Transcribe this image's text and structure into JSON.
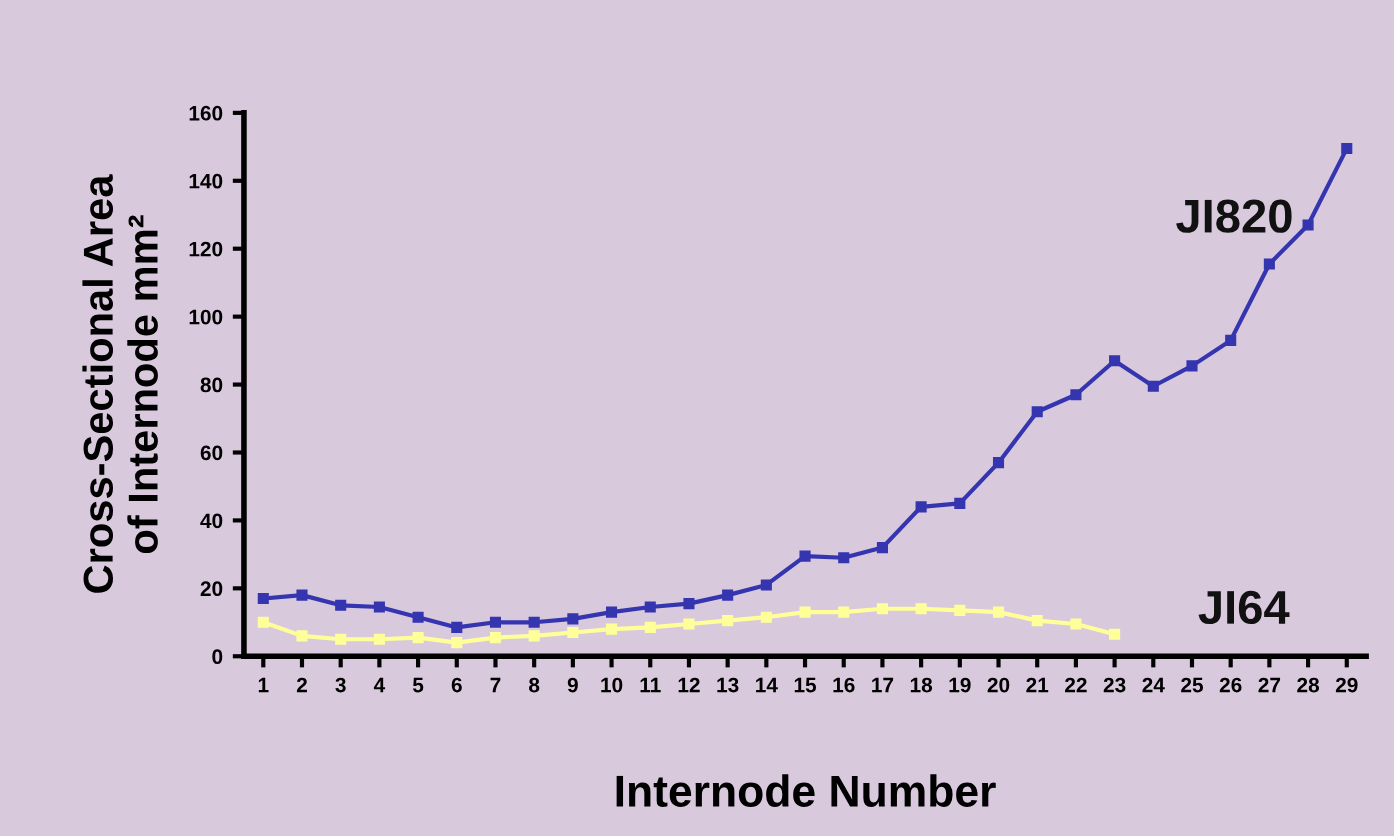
{
  "chart_data": {
    "type": "line",
    "xlabel": "Internode Number",
    "ylabel": "Cross-Sectional Area\nof Internode mm²",
    "categories": [
      "1",
      "2",
      "3",
      "4",
      "5",
      "6",
      "7",
      "8",
      "9",
      "10",
      "11",
      "12",
      "13",
      "14",
      "15",
      "16",
      "17",
      "18",
      "19",
      "20",
      "21",
      "22",
      "23",
      "24",
      "25",
      "26",
      "27",
      "28",
      "29"
    ],
    "series": [
      {
        "name": "JI820",
        "color": "#3535b0",
        "values": [
          17,
          18,
          15,
          14.5,
          11.5,
          8.5,
          10,
          10,
          11,
          13,
          14.5,
          15.5,
          18,
          21,
          29.5,
          29,
          32,
          44,
          45,
          57,
          72,
          77,
          87,
          79.5,
          85.5,
          93,
          115.5,
          127,
          149.5
        ]
      },
      {
        "name": "JI64",
        "color": "#ffff99",
        "values": [
          10,
          6,
          5,
          5,
          5.5,
          4,
          5.5,
          6,
          7,
          8,
          8.5,
          9.5,
          10.5,
          11.5,
          13,
          13,
          14,
          14,
          13.5,
          13,
          10.5,
          9.5,
          6.5,
          null,
          null,
          null,
          null,
          null,
          null
        ]
      }
    ],
    "ylim": [
      0,
      160
    ],
    "yticks": [
      0,
      20,
      40,
      60,
      80,
      100,
      120,
      140,
      160
    ],
    "grid": false,
    "legend": false,
    "marker": "square",
    "line_style": "solid"
  }
}
